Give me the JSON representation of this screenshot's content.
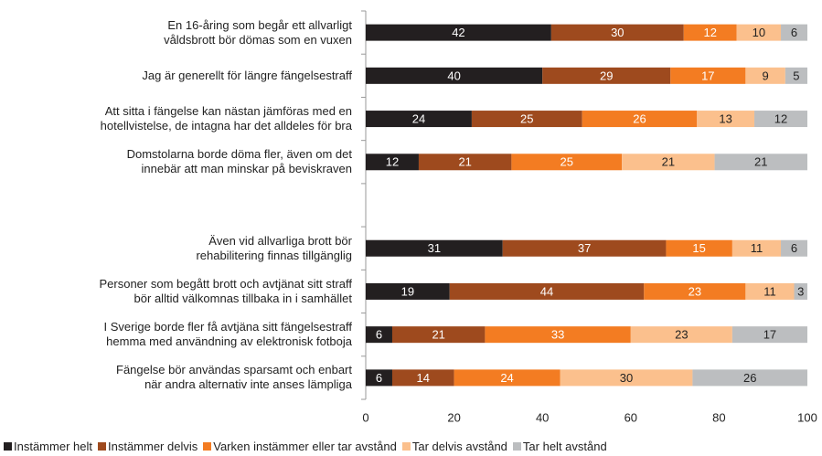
{
  "chart_data": {
    "type": "stacked-barh",
    "categories": [
      "En 16-åring som begår ett allvarligt\nvåldsbrott bör dömas som en vuxen",
      "Jag är generellt för längre fängelsestraff",
      "Att sitta i fängelse kan nästan jämföras med en\nhotellvistelse, de intagna har det alldeles för bra",
      "Domstolarna borde döma fler, även om det\ninnebär att man minskar på beviskraven",
      null,
      "Även vid allvarliga brott bör\nrehabilitering finnas tillgänglig",
      "Personer som begått brott och avtjänat sitt straff\nbör alltid välkomnas tillbaka in i samhället",
      "I Sverige borde fler få avtjäna sitt fängelsestraff\nhemma med användning av elektronisk fotboja",
      "Fängelse bör användas sparsamt och enbart\nnär andra alternativ inte anses lämpliga"
    ],
    "series": [
      {
        "name": "Instämmer helt",
        "color": "#231f20",
        "values": [
          42,
          40,
          24,
          12,
          null,
          31,
          19,
          6,
          6
        ]
      },
      {
        "name": "Instämmer delvis",
        "color": "#9e4a1e",
        "values": [
          30,
          29,
          25,
          21,
          null,
          37,
          44,
          21,
          14
        ]
      },
      {
        "name": "Varken instämmer eller tar avstånd",
        "color": "#f37c22",
        "values": [
          12,
          17,
          26,
          25,
          null,
          15,
          23,
          33,
          24
        ]
      },
      {
        "name": "Tar delvis avstånd",
        "color": "#fbc08d",
        "values": [
          10,
          9,
          13,
          21,
          null,
          11,
          11,
          23,
          30
        ]
      },
      {
        "name": "Tar helt avstånd",
        "color": "#bcbec0",
        "values": [
          6,
          5,
          12,
          21,
          null,
          6,
          3,
          17,
          26
        ]
      }
    ],
    "xlim": [
      0,
      100
    ],
    "xticks": [
      0,
      20,
      40,
      60,
      80,
      100
    ],
    "legend": "bottom"
  }
}
